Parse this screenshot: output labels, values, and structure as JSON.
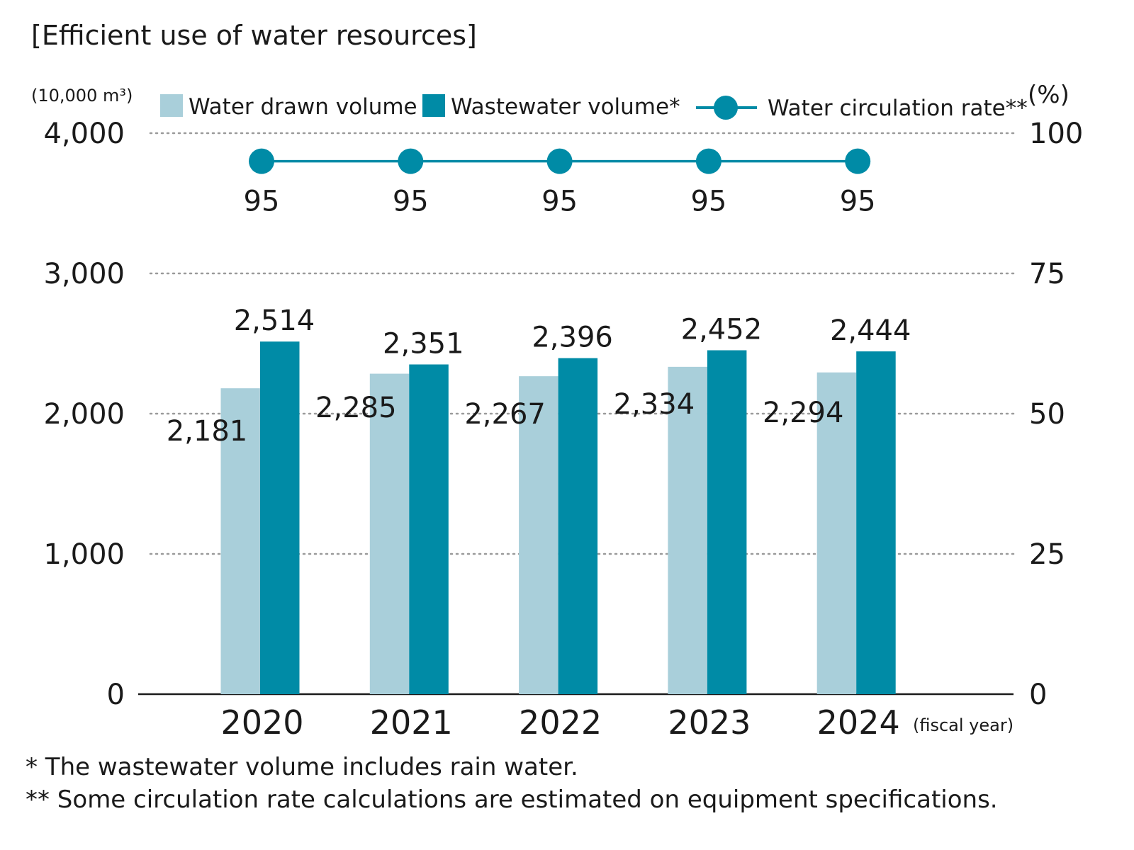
{
  "chart_data": {
    "type": "bar+line",
    "title": "[Efficient use of water resources]",
    "left_unit": "(10,000 m³)",
    "right_unit": "(%)",
    "x_unit": "(fiscal year)",
    "categories": [
      "2020",
      "2021",
      "2022",
      "2023",
      "2024"
    ],
    "left_ticks": [
      "0",
      "1,000",
      "2,000",
      "3,000",
      "4,000"
    ],
    "right_ticks": [
      "0",
      "25",
      "50",
      "75",
      "100"
    ],
    "ylim_left": [
      0,
      4000
    ],
    "ylim_right": [
      0,
      100
    ],
    "grid": "dotted horizontal",
    "legend_position": "top",
    "series": [
      {
        "name": "Water drawn volume",
        "kind": "bar",
        "axis": "left",
        "color": "#a9cfda",
        "values": [
          2181,
          2285,
          2267,
          2334,
          2294
        ],
        "labels": [
          "2,181",
          "2,285",
          "2,267",
          "2,334",
          "2,294"
        ]
      },
      {
        "name": "Wastewater volume*",
        "kind": "bar",
        "axis": "left",
        "color": "#008ba6",
        "values": [
          2514,
          2351,
          2396,
          2452,
          2444
        ],
        "labels": [
          "2,514",
          "2,351",
          "2,396",
          "2,452",
          "2,444"
        ]
      },
      {
        "name": "Water circulation rate**",
        "kind": "line",
        "axis": "right",
        "color": "#008ba6",
        "values": [
          95,
          95,
          95,
          95,
          95
        ],
        "labels": [
          "95",
          "95",
          "95",
          "95",
          "95"
        ]
      }
    ],
    "footnotes": [
      "* The wastewater volume includes rain water.",
      "** Some circulation rate calculations are estimated on equipment specifications."
    ]
  }
}
